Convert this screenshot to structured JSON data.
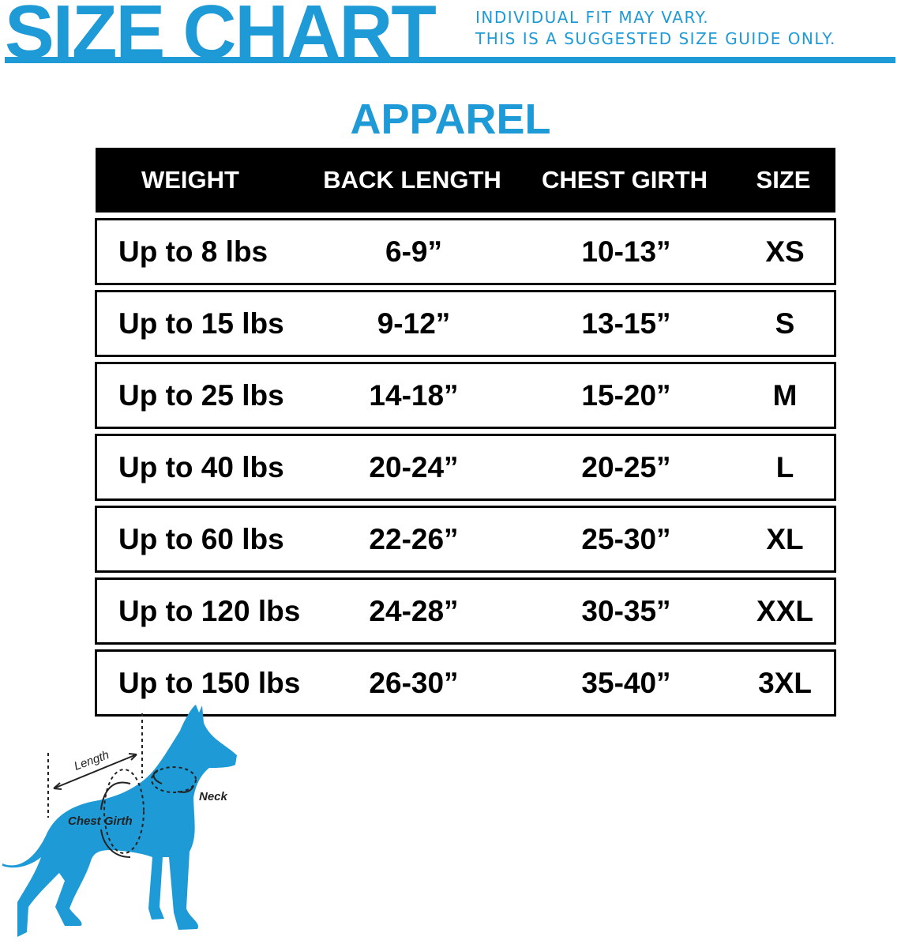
{
  "header": {
    "title": "SIZE CHART",
    "notes": [
      "INDIVIDUAL FIT MAY VARY.",
      "THIS IS A SUGGESTED SIZE GUIDE ONLY."
    ]
  },
  "section_title": "APPAREL",
  "table": {
    "columns": [
      "WEIGHT",
      "BACK LENGTH",
      "CHEST GIRTH",
      "SIZE"
    ],
    "rows": [
      [
        "Up to 8 lbs",
        "6-9”",
        "10-13”",
        "XS"
      ],
      [
        "Up to 15 lbs",
        "9-12”",
        "13-15”",
        "S"
      ],
      [
        "Up to 25 lbs",
        "14-18”",
        "15-20”",
        "M"
      ],
      [
        "Up to 40 lbs",
        "20-24”",
        "20-25”",
        "L"
      ],
      [
        "Up to 60 lbs",
        "22-26”",
        "25-30”",
        "XL"
      ],
      [
        "Up to 120 lbs",
        "24-28”",
        "30-35”",
        "XXL"
      ],
      [
        "Up to 150 lbs",
        "26-30”",
        "35-40”",
        "3XL"
      ]
    ]
  },
  "diagram": {
    "labels": {
      "length": "Length",
      "neck": "Neck",
      "chest": "Chest Girth"
    }
  },
  "colors": {
    "brand": "#1e9ad6",
    "header_bg": "#000000"
  }
}
